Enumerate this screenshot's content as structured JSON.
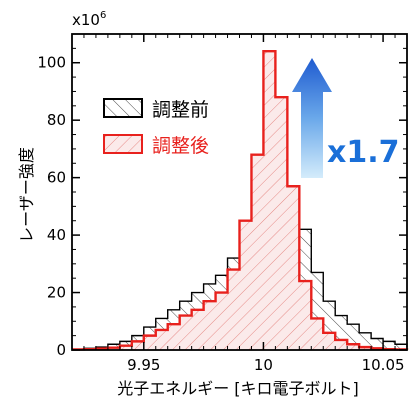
{
  "chart_data": {
    "type": "area",
    "xlabel": "光子エネルギー [キロ電子ボルト]",
    "ylabel": "レーザー強度",
    "y_multiplier": "x10",
    "y_multiplier_exp": "6",
    "xlim": [
      9.92,
      10.06
    ],
    "ylim": [
      0,
      110
    ],
    "x_ticks": [
      9.95,
      10.0,
      10.05
    ],
    "x_tick_labels": [
      "9.95",
      "10",
      "10.05"
    ],
    "y_ticks": [
      0,
      20,
      40,
      60,
      80,
      100
    ],
    "y_tick_labels": [
      "0",
      "20",
      "40",
      "60",
      "80",
      "100"
    ],
    "legend_position": "upper-left",
    "annotation": {
      "text": "x1.7",
      "color": "#1a6fd8"
    },
    "series": [
      {
        "name": "調整前",
        "color": "#000000",
        "fill": "black-hatch",
        "x": [
          9.92,
          9.925,
          9.93,
          9.935,
          9.94,
          9.945,
          9.95,
          9.955,
          9.96,
          9.965,
          9.97,
          9.975,
          9.98,
          9.985,
          9.99,
          9.995,
          10.0,
          10.005,
          10.01,
          10.015,
          10.02,
          10.025,
          10.03,
          10.035,
          10.04,
          10.045,
          10.05,
          10.055,
          10.06
        ],
        "values": [
          0.3,
          0.6,
          1,
          2,
          3,
          5,
          8,
          11,
          14,
          17,
          20,
          23,
          26,
          32,
          41,
          49,
          59,
          61,
          56,
          42,
          27,
          17,
          12,
          9,
          6,
          4,
          3,
          2,
          1
        ]
      },
      {
        "name": "調整後",
        "color": "#e8211d",
        "fill": "red-hatch",
        "x": [
          9.92,
          9.925,
          9.93,
          9.935,
          9.94,
          9.945,
          9.95,
          9.955,
          9.96,
          9.965,
          9.97,
          9.975,
          9.98,
          9.985,
          9.99,
          9.995,
          10.0,
          10.005,
          10.01,
          10.015,
          10.02,
          10.025,
          10.03,
          10.035,
          10.04,
          10.045,
          10.05,
          10.055,
          10.06
        ],
        "values": [
          0.2,
          0.3,
          0.5,
          0.8,
          1.5,
          3,
          5,
          7,
          9,
          12,
          14,
          17,
          20,
          28,
          45,
          68,
          104,
          88,
          57,
          24,
          11,
          6,
          3.5,
          2,
          1,
          0.6,
          0.3,
          0.2,
          0.1
        ]
      }
    ]
  }
}
